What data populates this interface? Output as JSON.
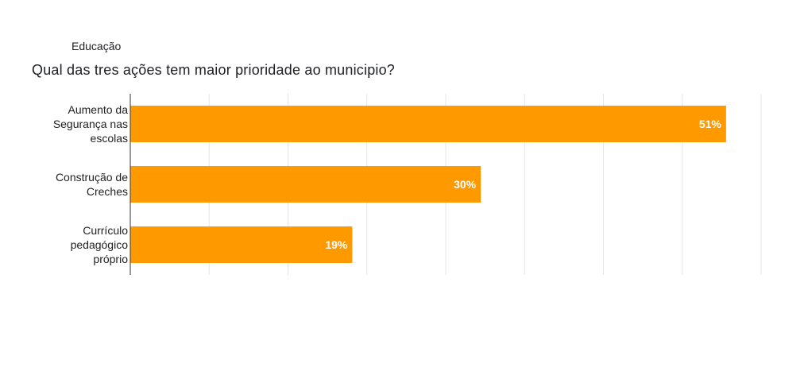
{
  "header": {
    "section": "Educação",
    "question": "Qual das tres ações tem maior prioridade ao municipio?"
  },
  "colors": {
    "bar": "#ff9900",
    "grid": "#e6e6e6",
    "axis": "#333333"
  },
  "chart_data": {
    "type": "bar",
    "orientation": "horizontal",
    "title": "Qual das tres ações tem maior prioridade ao municipio?",
    "categories": [
      [
        "Aumento da",
        "Segurança nas",
        "escolas"
      ],
      [
        "Construção de",
        "Creches"
      ],
      [
        "Currículo",
        "pedagógico",
        "próprio"
      ]
    ],
    "values": [
      51,
      30,
      19
    ],
    "value_labels": [
      "51%",
      "30%",
      "19%"
    ],
    "xlim": [
      0,
      54
    ],
    "grid": true,
    "xlabel": "",
    "ylabel": ""
  }
}
